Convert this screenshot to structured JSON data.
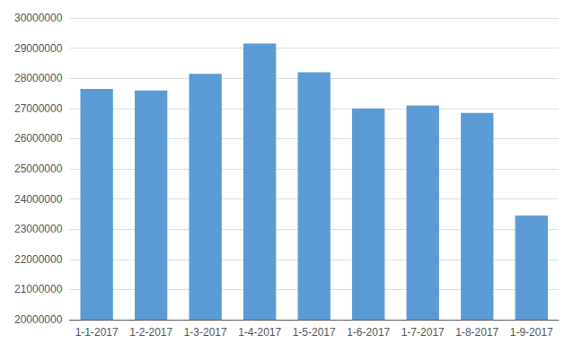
{
  "chart_data": {
    "type": "bar",
    "categories": [
      "1-1-2017",
      "1-2-2017",
      "1-3-2017",
      "1-4-2017",
      "1-5-2017",
      "1-6-2017",
      "1-7-2017",
      "1-8-2017",
      "1-9-2017"
    ],
    "values": [
      27650000,
      27600000,
      28150000,
      29150000,
      28200000,
      27000000,
      27100000,
      26850000,
      23450000
    ],
    "color": "#5b9bd5",
    "ylim": [
      20000000,
      30000000
    ],
    "yticks": [
      20000000,
      21000000,
      22000000,
      23000000,
      24000000,
      25000000,
      26000000,
      27000000,
      28000000,
      29000000,
      30000000
    ],
    "grid": true
  }
}
